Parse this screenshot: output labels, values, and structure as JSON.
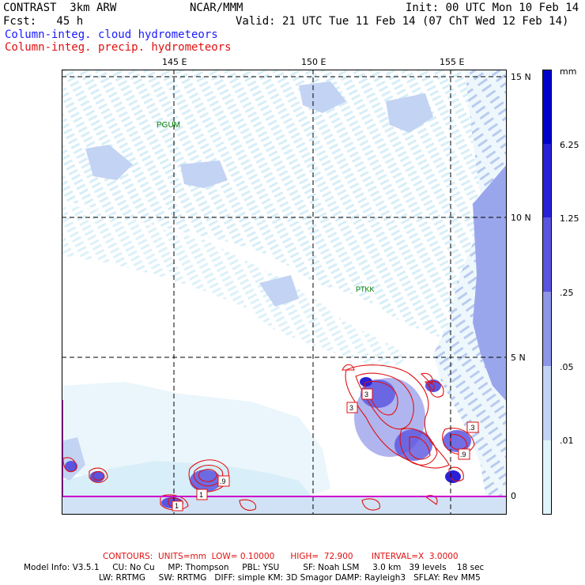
{
  "header": {
    "model": "CONTRAST  3km ARW",
    "center": "NCAR/MMM",
    "init": "Init: 00 UTC Mon 10 Feb 14",
    "fcst": "Fcst:   45 h",
    "valid": "Valid: 21 UTC Tue 11 Feb 14 (07 ChT Wed 12 Feb 14)",
    "field1": "Column-integ. cloud hydrometeors",
    "field2": "Column-integ. precip. hydrometeors"
  },
  "map": {
    "lon_labels": [
      "145 E",
      "150 E",
      "155 E"
    ],
    "lat_labels": [
      "15 N",
      "10 N",
      "5 N",
      "0"
    ],
    "stations": [
      {
        "name": "PGUM"
      },
      {
        "name": "PTKK"
      }
    ],
    "contour_labels": [
      "3",
      "3",
      ".3",
      ".9",
      "1",
      ".9",
      "1"
    ],
    "colors": {
      "level_01": "#e1f4fb",
      "level_05": "#c3d3f3",
      "level_25": "#8f95e8",
      "level_125": "#5a54e0",
      "level_625": "#2a20d8",
      "level_max": "#0000cc",
      "precip_contour": "#e01010",
      "station": "#007a00"
    }
  },
  "colorbar": {
    "units": "mm",
    "labels": [
      "6.25",
      "1.25",
      ".25",
      ".05",
      ".01"
    ]
  },
  "footer": {
    "contours": "CONTOURS:  UNITS=mm  LOW= 0.10000      HIGH=  72.900       INTERVAL=X  3.0000",
    "line1": "Model Info: V3.5.1     CU: No Cu     MP: Thompson     PBL: YSU         SF: Noah LSM     3.0 km   39 levels    18 sec",
    "line2": "LW: RRTMG     SW: RRTMG   DIFF: simple KM: 3D Smagor DAMP: Rayleigh3   SFLAY: Rev MM5"
  }
}
